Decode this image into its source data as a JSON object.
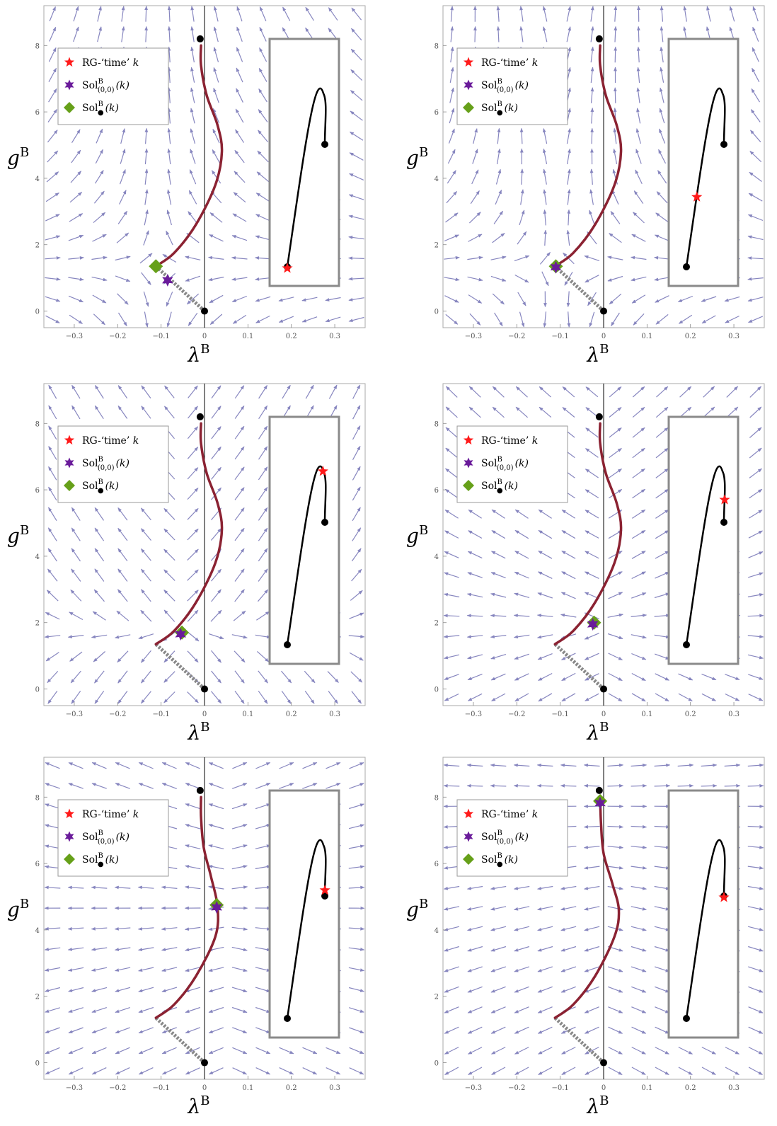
{
  "axis_labels": {
    "x_symbol": "λ",
    "y_symbol": "g",
    "superscript": "B"
  },
  "legend": {
    "items": [
      {
        "text": "RG-‘time’ ",
        "italic": "k",
        "marker": "red-star"
      },
      {
        "text": "Sol",
        "sup": "B",
        "sub": "(0,0)",
        "arg": "(k)",
        "marker": "purple-star"
      },
      {
        "text": "Sol",
        "sup": "B",
        "sub": "●",
        "arg": "(k)",
        "marker": "green-diamond"
      }
    ]
  },
  "colors": {
    "stream": "#7372b5",
    "trajectory": "#8b2232",
    "separatrix": "#888888",
    "red_star": "#ff1a1a",
    "purple_star": "#6a1b9a",
    "green_diamond": "#66a019",
    "inset_border": "#8a8a8a",
    "frame": "#aaaaaa"
  },
  "chart_data": [
    {
      "type": "scatter",
      "panel": "top-left",
      "xlabel": "λ^B",
      "ylabel": "g^B",
      "xlim": [
        -0.37,
        0.37
      ],
      "ylim": [
        -0.5,
        9.2
      ],
      "xticks": [
        -0.3,
        -0.2,
        -0.1,
        0,
        0.1,
        0.2,
        0.3
      ],
      "yticks": [
        0,
        2,
        4,
        6,
        8
      ],
      "grid": false,
      "legend_position": "top-left",
      "fixed_points": [
        [
          0,
          0
        ],
        [
          -0.01,
          8.2
        ]
      ],
      "trajectory": [
        [
          -0.112,
          1.35
        ],
        [
          -0.07,
          1.75
        ],
        [
          -0.02,
          2.6
        ],
        [
          0.025,
          3.8
        ],
        [
          0.04,
          4.8
        ],
        [
          0.03,
          5.6
        ],
        [
          0.005,
          6.5
        ],
        [
          -0.008,
          7.4
        ],
        [
          -0.008,
          8.0
        ]
      ],
      "separatrix": [
        [
          0,
          0
        ],
        [
          -0.112,
          1.35
        ]
      ],
      "sol_00": [
        -0.085,
        0.93
      ],
      "sol_dot": [
        -0.112,
        1.35
      ],
      "inset_star_t": 0.0,
      "stream_center": [
        -0.112,
        1.35
      ],
      "stream_alpha": 0.0
    },
    {
      "type": "scatter",
      "panel": "top-right",
      "xlabel": "λ^B",
      "ylabel": "g^B",
      "xlim": [
        -0.37,
        0.37
      ],
      "ylim": [
        -0.5,
        9.2
      ],
      "xticks": [
        -0.3,
        -0.2,
        -0.1,
        0,
        0.1,
        0.2,
        0.3
      ],
      "yticks": [
        0,
        2,
        4,
        6,
        8
      ],
      "grid": false,
      "legend_position": "top-left",
      "fixed_points": [
        [
          0,
          0
        ],
        [
          -0.01,
          8.2
        ]
      ],
      "trajectory": [
        [
          -0.112,
          1.35
        ],
        [
          -0.07,
          1.75
        ],
        [
          -0.02,
          2.6
        ],
        [
          0.025,
          3.8
        ],
        [
          0.04,
          4.8
        ],
        [
          0.03,
          5.6
        ],
        [
          0.005,
          6.5
        ],
        [
          -0.008,
          7.4
        ],
        [
          -0.008,
          8.0
        ]
      ],
      "separatrix": [
        [
          0,
          0
        ],
        [
          -0.112,
          1.35
        ]
      ],
      "sol_00": [
        -0.11,
        1.32
      ],
      "sol_dot": [
        -0.11,
        1.35
      ],
      "inset_star_t": 0.3,
      "stream_center": [
        -0.11,
        1.35
      ],
      "stream_alpha": 0.25
    },
    {
      "type": "scatter",
      "panel": "middle-left",
      "xlabel": "λ^B",
      "ylabel": "g^B",
      "xlim": [
        -0.37,
        0.37
      ],
      "ylim": [
        -0.5,
        9.2
      ],
      "xticks": [
        -0.3,
        -0.2,
        -0.1,
        0,
        0.1,
        0.2,
        0.3
      ],
      "yticks": [
        0,
        2,
        4,
        6,
        8
      ],
      "grid": false,
      "legend_position": "top-left",
      "fixed_points": [
        [
          0,
          0
        ],
        [
          -0.01,
          8.2
        ]
      ],
      "trajectory": [
        [
          -0.112,
          1.35
        ],
        [
          -0.07,
          1.75
        ],
        [
          -0.02,
          2.6
        ],
        [
          0.025,
          3.8
        ],
        [
          0.04,
          4.8
        ],
        [
          0.03,
          5.6
        ],
        [
          0.005,
          6.5
        ],
        [
          -0.008,
          7.4
        ],
        [
          -0.008,
          8.0
        ]
      ],
      "separatrix": [
        [
          0,
          0
        ],
        [
          -0.112,
          1.35
        ]
      ],
      "sol_00": [
        -0.055,
        1.65
      ],
      "sol_dot": [
        -0.052,
        1.7
      ],
      "inset_star_t": 0.78,
      "stream_center": [
        -0.052,
        1.7
      ],
      "stream_alpha": 0.6
    },
    {
      "type": "scatter",
      "panel": "middle-right",
      "xlabel": "λ^B",
      "ylabel": "g^B",
      "xlim": [
        -0.37,
        0.37
      ],
      "ylim": [
        -0.5,
        9.2
      ],
      "xticks": [
        -0.3,
        -0.2,
        -0.1,
        0,
        0.1,
        0.2,
        0.3
      ],
      "yticks": [
        0,
        2,
        4,
        6,
        8
      ],
      "grid": false,
      "legend_position": "top-left",
      "fixed_points": [
        [
          0,
          0
        ],
        [
          -0.01,
          8.2
        ]
      ],
      "trajectory": [
        [
          -0.112,
          1.35
        ],
        [
          -0.07,
          1.75
        ],
        [
          -0.02,
          2.6
        ],
        [
          0.025,
          3.8
        ],
        [
          0.04,
          4.8
        ],
        [
          0.03,
          5.6
        ],
        [
          0.005,
          6.5
        ],
        [
          -0.008,
          7.4
        ],
        [
          -0.008,
          8.0
        ]
      ],
      "separatrix": [
        [
          0,
          0
        ],
        [
          -0.112,
          1.35
        ]
      ],
      "sol_00": [
        -0.025,
        1.95
      ],
      "sol_dot": [
        -0.022,
        2.0
      ],
      "inset_star_t": 0.9,
      "stream_center": [
        -0.022,
        2.0
      ],
      "stream_alpha": 0.75
    },
    {
      "type": "scatter",
      "panel": "bottom-left",
      "xlabel": "λ^B",
      "ylabel": "g^B",
      "xlim": [
        -0.37,
        0.37
      ],
      "ylim": [
        -0.5,
        9.2
      ],
      "xticks": [
        -0.3,
        -0.2,
        -0.1,
        0,
        0.1,
        0.2,
        0.3
      ],
      "yticks": [
        0,
        2,
        4,
        6,
        8
      ],
      "grid": false,
      "legend_position": "top-left",
      "fixed_points": [
        [
          0,
          0
        ],
        [
          -0.01,
          8.2
        ]
      ],
      "trajectory": [
        [
          -0.112,
          1.35
        ],
        [
          -0.07,
          1.75
        ],
        [
          -0.02,
          2.6
        ],
        [
          0.025,
          3.8
        ],
        [
          0.03,
          4.7
        ],
        [
          0.015,
          5.6
        ],
        [
          -0.002,
          6.5
        ],
        [
          -0.008,
          7.4
        ],
        [
          -0.008,
          8.0
        ]
      ],
      "separatrix": [
        [
          0,
          0
        ],
        [
          -0.112,
          1.35
        ]
      ],
      "sol_00": [
        0.028,
        4.68
      ],
      "sol_dot": [
        0.028,
        4.75
      ],
      "inset_star_t": 0.97,
      "stream_center": [
        0.028,
        4.7
      ],
      "stream_alpha": 0.9
    },
    {
      "type": "scatter",
      "panel": "bottom-right",
      "xlabel": "λ^B",
      "ylabel": "g^B",
      "xlim": [
        -0.37,
        0.37
      ],
      "ylim": [
        -0.5,
        9.2
      ],
      "xticks": [
        -0.3,
        -0.2,
        -0.1,
        0,
        0.1,
        0.2,
        0.3
      ],
      "yticks": [
        0,
        2,
        4,
        6,
        8
      ],
      "grid": false,
      "legend_position": "top-left",
      "fixed_points": [
        [
          0,
          0
        ],
        [
          -0.01,
          8.2
        ]
      ],
      "trajectory": [
        [
          -0.112,
          1.35
        ],
        [
          -0.07,
          1.75
        ],
        [
          -0.02,
          2.6
        ],
        [
          0.025,
          3.8
        ],
        [
          0.035,
          4.6
        ],
        [
          0.02,
          5.4
        ],
        [
          0.0,
          6.3
        ],
        [
          -0.006,
          7.2
        ],
        [
          -0.008,
          8.0
        ]
      ],
      "separatrix": [
        [
          0,
          0
        ],
        [
          -0.112,
          1.35
        ]
      ],
      "sol_00": [
        -0.008,
        7.82
      ],
      "sol_dot": [
        -0.008,
        7.88
      ],
      "inset_star_t": 1.0,
      "stream_center": [
        -0.008,
        7.85
      ],
      "stream_alpha": 1.0
    }
  ]
}
